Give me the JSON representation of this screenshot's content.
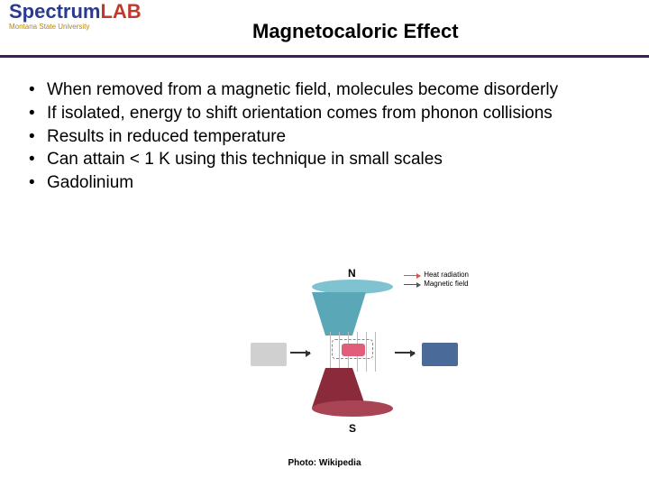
{
  "header": {
    "logo_word1": "Spectrum",
    "logo_word2": "LAB",
    "logo_sub": "Montana State University",
    "title": "Magnetocaloric Effect",
    "accent_color": "#3b1e5f",
    "logo_word1_color": "#2a3a8f",
    "logo_word2_color": "#c0392b",
    "logo_sub_color": "#b8860b"
  },
  "bullets": [
    "When removed from a magnetic field, molecules become disorderly",
    "If isolated, energy to shift orientation comes from phonon collisions",
    "Results in reduced temperature",
    "Can attain < 1 K using this technique in small scales",
    "Gadolinium"
  ],
  "diagram": {
    "legend1": "Heat radiation",
    "legend2": "Magnetic field",
    "legend1_color": "#d9534f",
    "legend2_color": "#555555",
    "n_label": "N",
    "s_label": "S",
    "n_color": "#5aa7b8",
    "n_top_color": "#7fc3d1",
    "s_color": "#8b2a3a",
    "s_top_color": "#a94454",
    "sample_color": "#e15e7a",
    "left_block_color": "#d0d0d0",
    "right_block_color": "#4a6a9a",
    "arrow_color": "#333333"
  },
  "credit": "Photo: Wikipedia"
}
